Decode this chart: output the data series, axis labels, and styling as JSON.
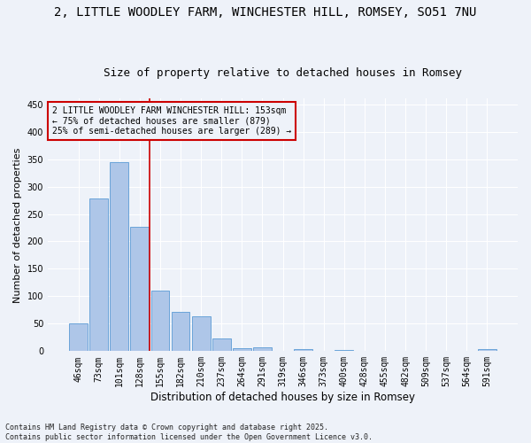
{
  "title_line1": "2, LITTLE WOODLEY FARM, WINCHESTER HILL, ROMSEY, SO51 7NU",
  "title_line2": "Size of property relative to detached houses in Romsey",
  "xlabel": "Distribution of detached houses by size in Romsey",
  "ylabel": "Number of detached properties",
  "bar_labels": [
    "46sqm",
    "73sqm",
    "101sqm",
    "128sqm",
    "155sqm",
    "182sqm",
    "210sqm",
    "237sqm",
    "264sqm",
    "291sqm",
    "319sqm",
    "346sqm",
    "373sqm",
    "400sqm",
    "428sqm",
    "455sqm",
    "482sqm",
    "509sqm",
    "537sqm",
    "564sqm",
    "591sqm"
  ],
  "bar_values": [
    50,
    279,
    345,
    227,
    110,
    71,
    63,
    23,
    6,
    7,
    0,
    3,
    0,
    2,
    0,
    0,
    0,
    0,
    0,
    0,
    3
  ],
  "bar_color": "#aec6e8",
  "bar_edge_color": "#5b9bd5",
  "vline_color": "#cc0000",
  "vline_x_index": 3.5,
  "annotation_text": "2 LITTLE WOODLEY FARM WINCHESTER HILL: 153sqm\n← 75% of detached houses are smaller (879)\n25% of semi-detached houses are larger (289) →",
  "annotation_box_edgecolor": "#cc0000",
  "ylim": [
    0,
    460
  ],
  "yticks": [
    0,
    50,
    100,
    150,
    200,
    250,
    300,
    350,
    400,
    450
  ],
  "footnote": "Contains HM Land Registry data © Crown copyright and database right 2025.\nContains public sector information licensed under the Open Government Licence v3.0.",
  "bg_color": "#eef2f9",
  "grid_color": "#ffffff",
  "title1_fontsize": 10,
  "title2_fontsize": 9,
  "ylabel_fontsize": 8,
  "xlabel_fontsize": 8.5,
  "tick_fontsize": 7,
  "annotation_fontsize": 7,
  "footnote_fontsize": 6
}
